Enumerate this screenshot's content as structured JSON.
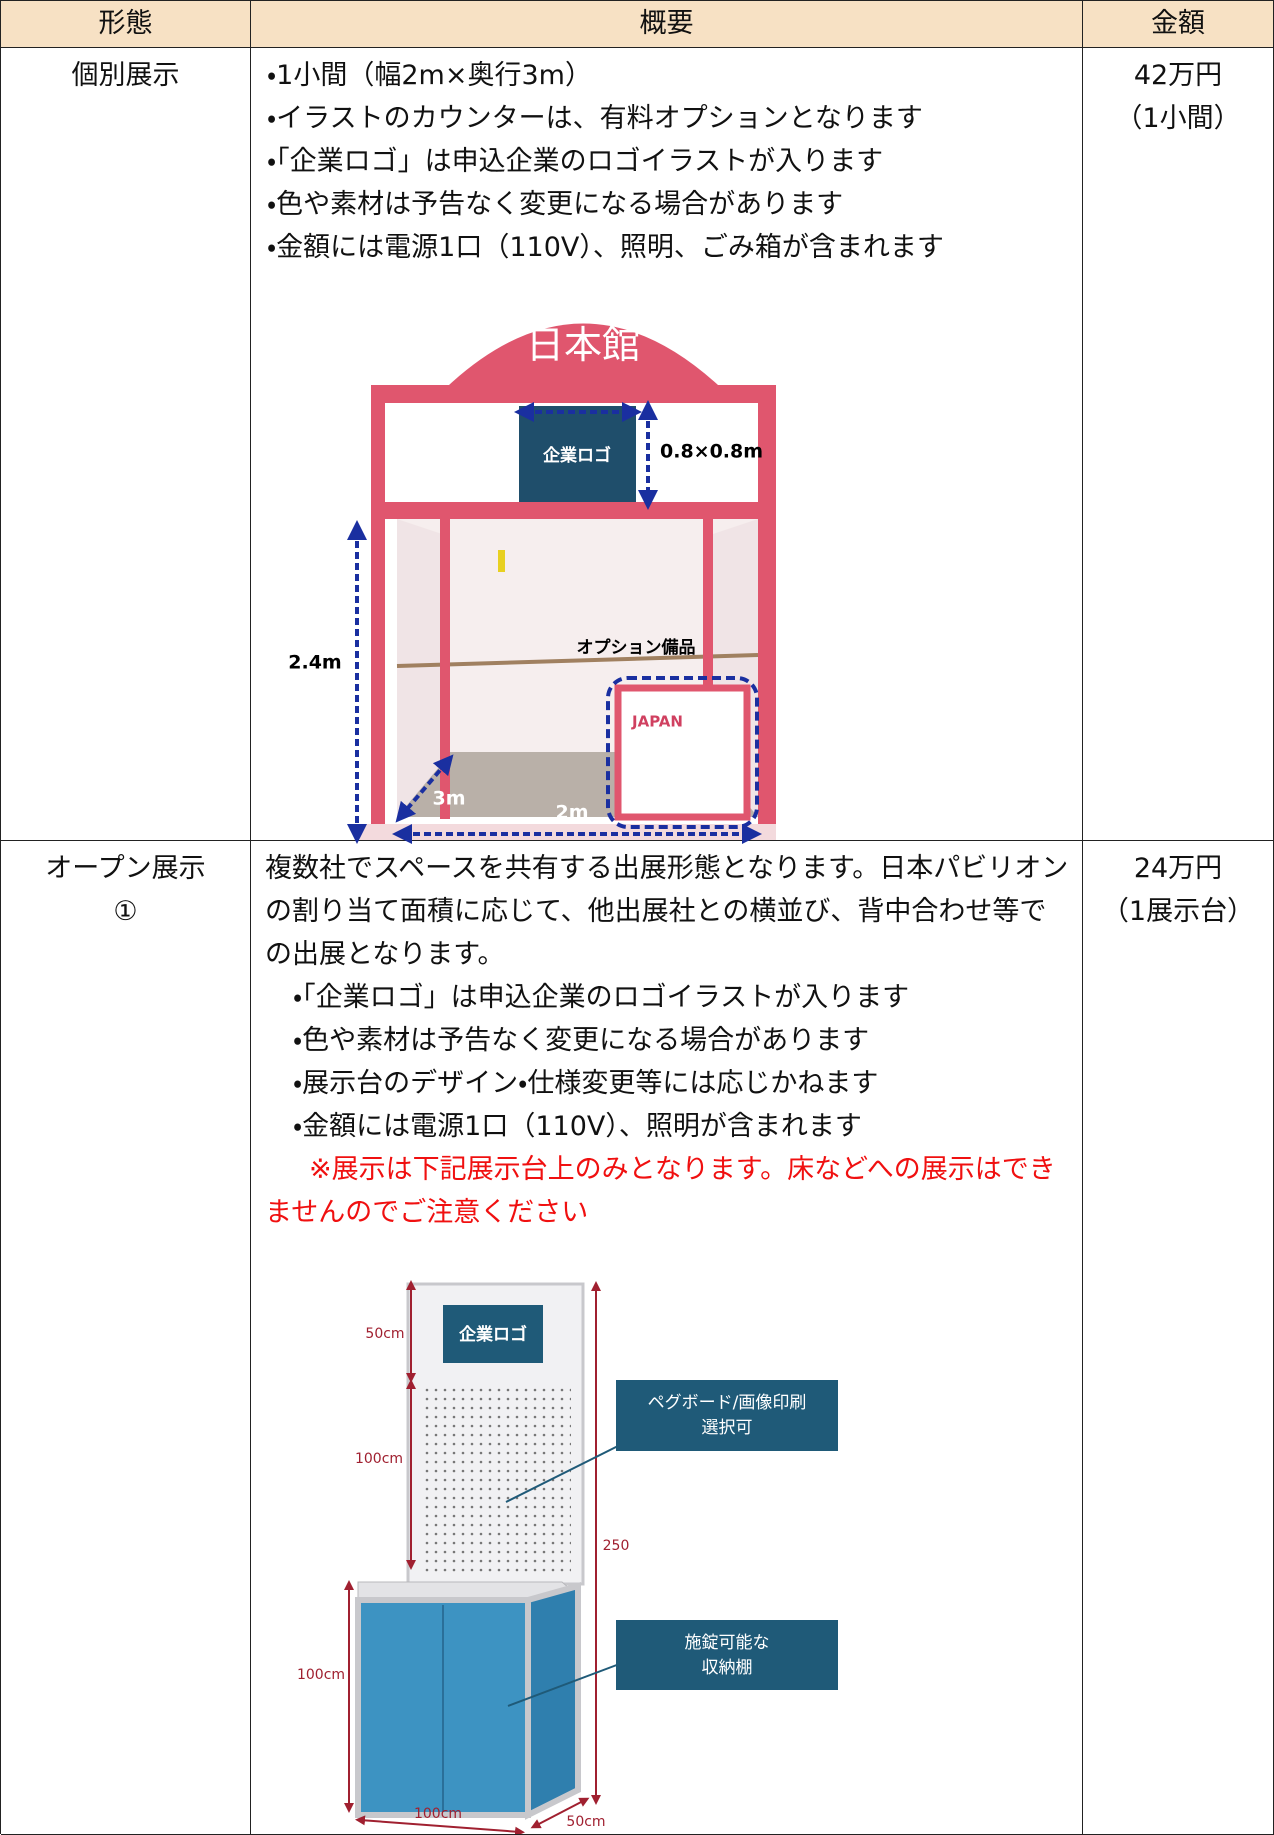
{
  "table": {
    "headers": [
      "形態",
      "概要",
      "金額"
    ],
    "rows": [
      {
        "type": [
          "個別展示"
        ],
        "description": {
          "bullets": [
            "・1小間（幅2m×奥行3m）",
            "・イラストのカウンターは、有料オプションとなります",
            "・「企業ロゴ」は申込企業のロゴイラストが入ります",
            "・色や素材は予告なく変更になる場合があります",
            "・金額には電源1口（110V）、照明、ごみ箱が含まれます"
          ]
        },
        "price": [
          "42万円",
          "（1小間）"
        ],
        "figure": {
          "sign": "日本館",
          "logo": "企業ロゴ",
          "logo_size": "0.8×0.8m",
          "height": "2.4m",
          "option": "オプション備品",
          "counter": "JAPAN",
          "depth": "3m",
          "width": "2m"
        }
      },
      {
        "type": [
          "オープン展示",
          "①"
        ],
        "description": {
          "paragraph": "複数社でスペースを共有する出展形態となります。日本パビリオンの割り当て面積に応じて、他出展社との横並び、背中合わせ等での出展となります。",
          "bullets": [
            "・「企業ロゴ」は申込企業のロゴイラストが入ります",
            "・色や素材は予告なく変更になる場合があります",
            "・展示台のデザイン・仕様変更等には応じかねます",
            "・金額には電源1口（110V）、照明が含まれます"
          ],
          "note": "※展示は下記展示台上のみとなります。床などへの展示はできませんのでご注意ください"
        },
        "price": [
          "24万円",
          "（1展示台）"
        ],
        "figure": {
          "top_height": "50cm",
          "logo": "企業ロゴ",
          "pegboard": [
            "ペグボード/画像印刷",
            "選択可"
          ],
          "panel_height": "100cm",
          "total_height": "250",
          "storage": [
            "施錠可能な",
            "収納棚"
          ],
          "cabinet_height": "100cm",
          "cabinet_width": "100cm",
          "cabinet_depth": "50cm"
        }
      }
    ]
  }
}
